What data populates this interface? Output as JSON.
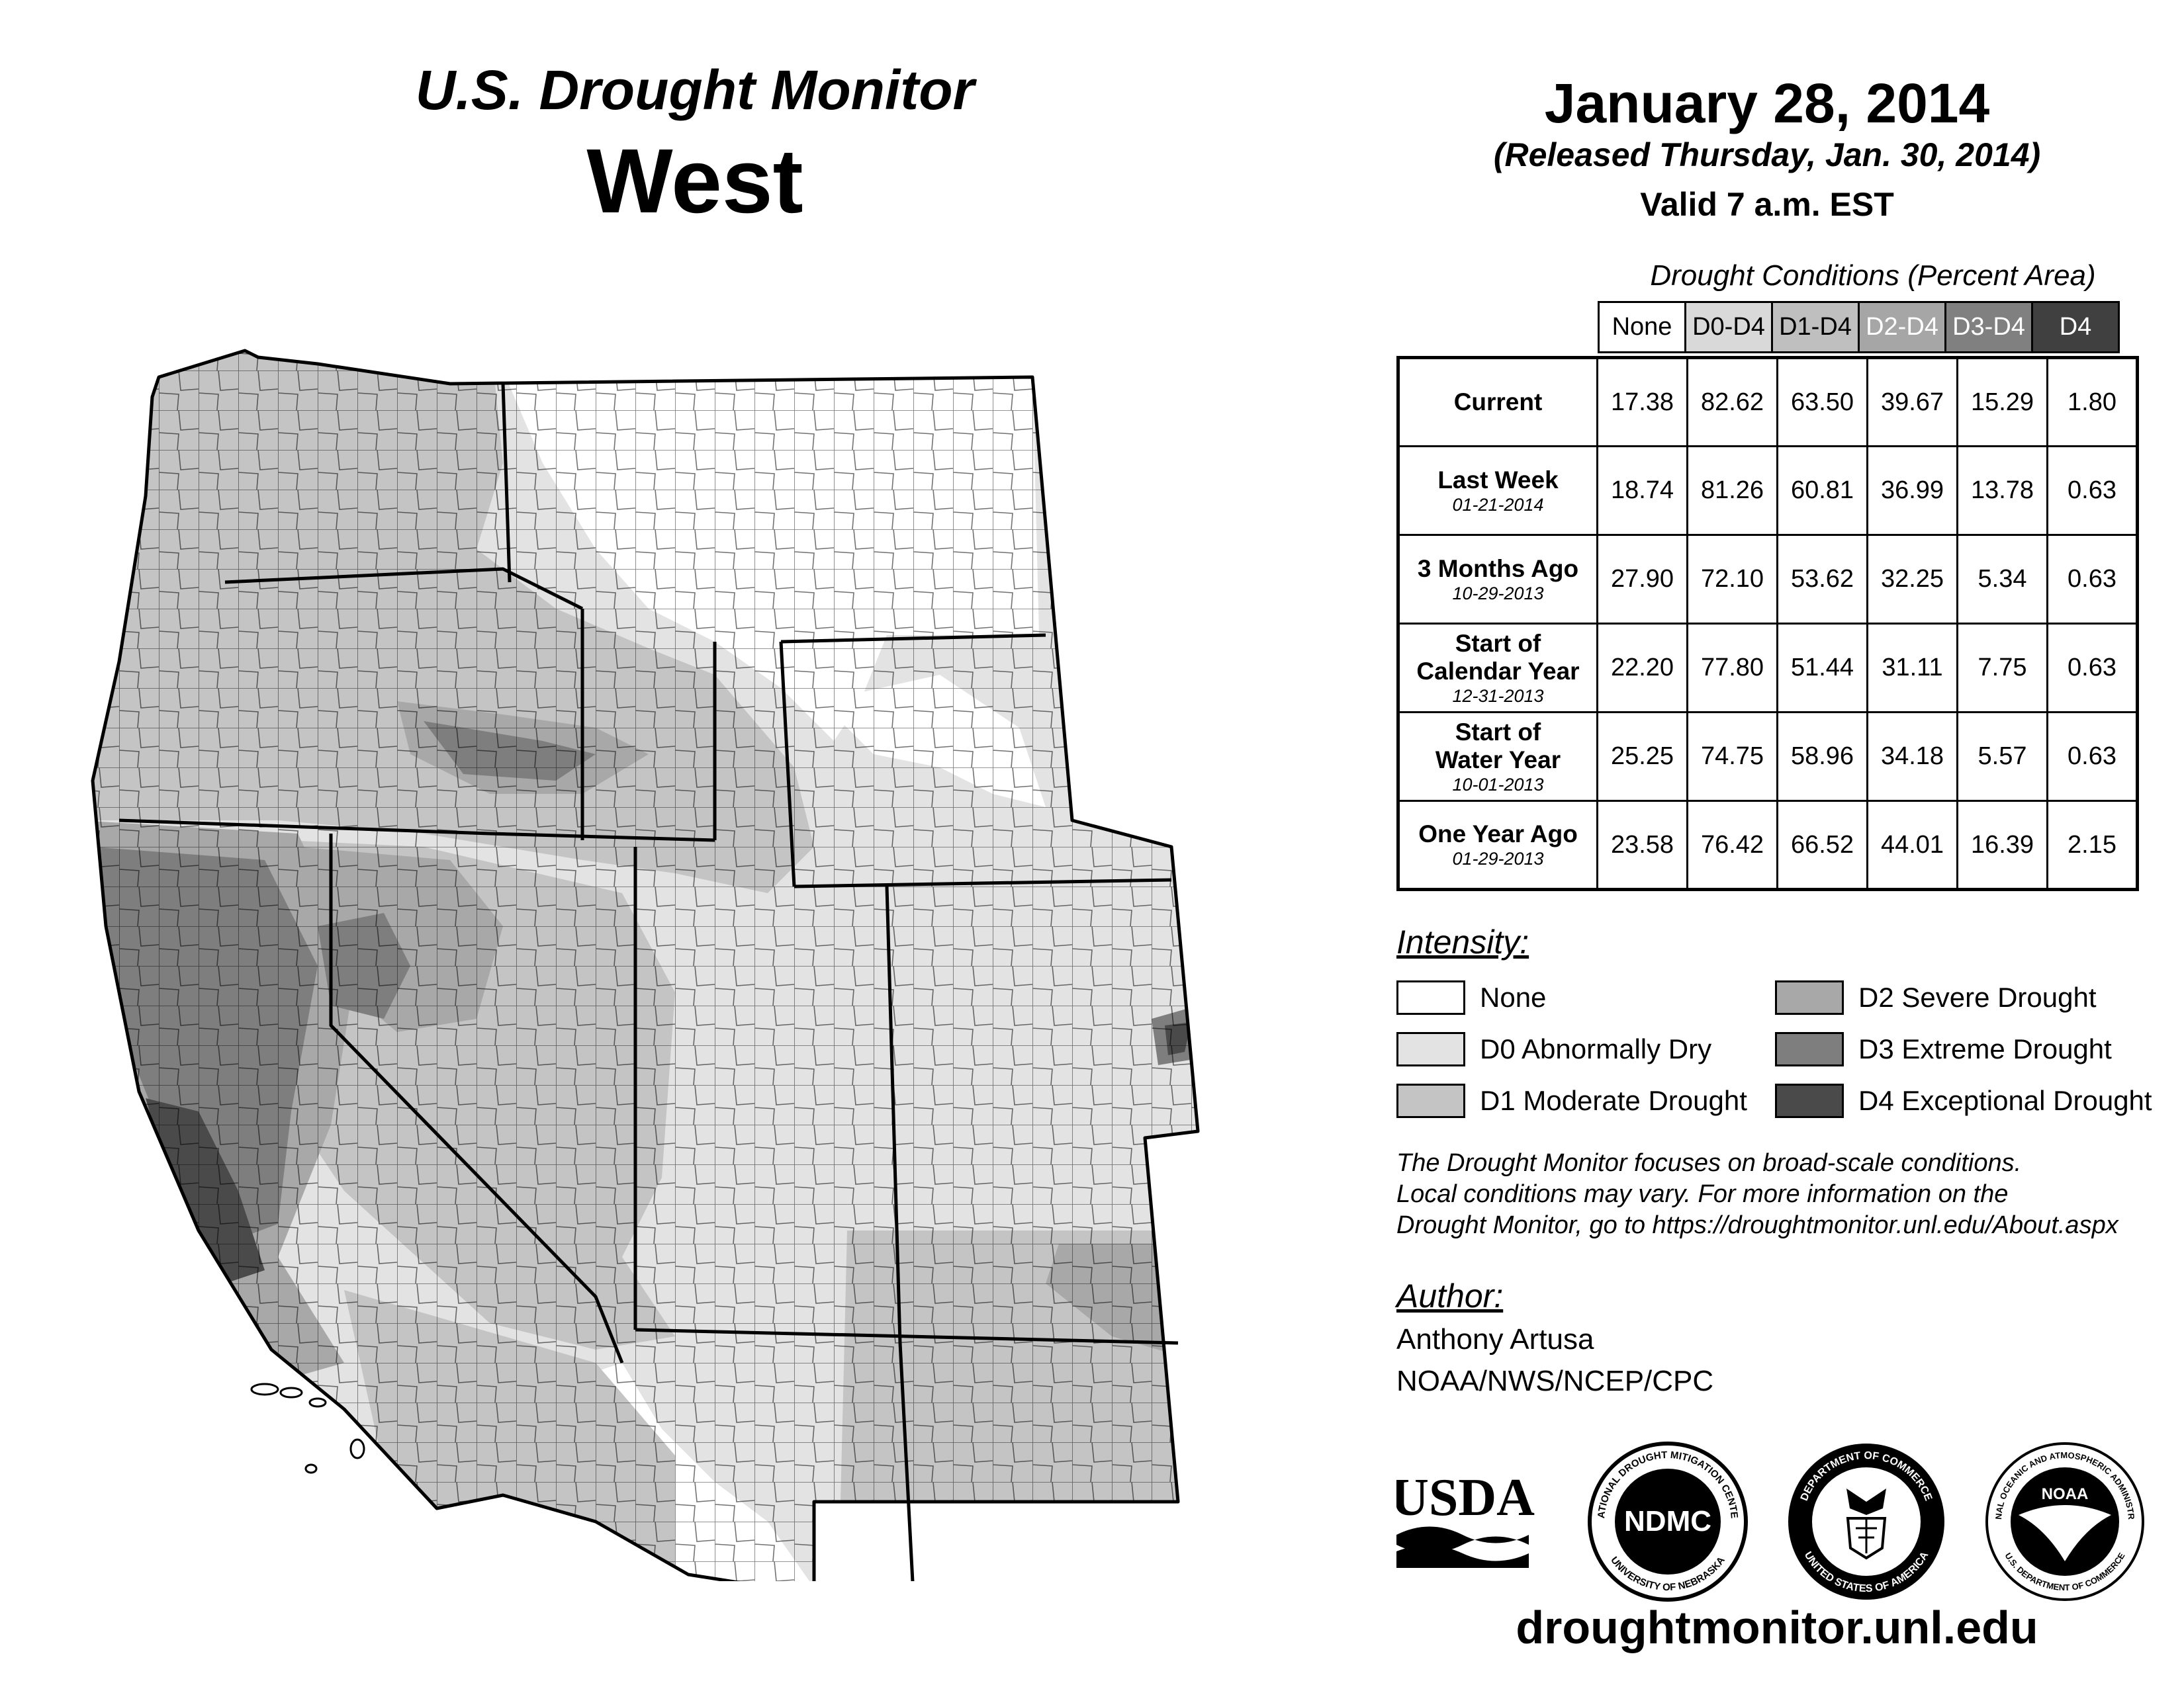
{
  "header": {
    "title": "U.S. Drought Monitor",
    "region": "West",
    "date": "January 28, 2014",
    "released": "(Released Thursday, Jan. 30, 2014)",
    "valid": "Valid 7 a.m. EST"
  },
  "table": {
    "caption": "Drought Conditions (Percent Area)",
    "columns": [
      "None",
      "D0-D4",
      "D1-D4",
      "D2-D4",
      "D3-D4",
      "D4"
    ],
    "column_colors": [
      "#ffffff",
      "#d9d9d9",
      "#bfbfbf",
      "#a6a6a6",
      "#808080",
      "#404040"
    ],
    "column_text_colors": [
      "#000000",
      "#000000",
      "#000000",
      "#ffffff",
      "#ffffff",
      "#ffffff"
    ],
    "rows": [
      {
        "label": "Current",
        "date": "",
        "values": [
          "17.38",
          "82.62",
          "63.50",
          "39.67",
          "15.29",
          "1.80"
        ]
      },
      {
        "label": "Last Week",
        "date": "01-21-2014",
        "values": [
          "18.74",
          "81.26",
          "60.81",
          "36.99",
          "13.78",
          "0.63"
        ]
      },
      {
        "label": "3 Months Ago",
        "date": "10-29-2013",
        "values": [
          "27.90",
          "72.10",
          "53.62",
          "32.25",
          "5.34",
          "0.63"
        ]
      },
      {
        "label_lines": [
          "Start of",
          "Calendar Year"
        ],
        "date": "12-31-2013",
        "values": [
          "22.20",
          "77.80",
          "51.44",
          "31.11",
          "7.75",
          "0.63"
        ]
      },
      {
        "label_lines": [
          "Start of",
          "Water Year"
        ],
        "date": "10-01-2013",
        "values": [
          "25.25",
          "74.75",
          "58.96",
          "34.18",
          "5.57",
          "0.63"
        ]
      },
      {
        "label": "One Year Ago",
        "date": "01-29-2013",
        "values": [
          "23.58",
          "76.42",
          "66.52",
          "44.01",
          "16.39",
          "2.15"
        ]
      }
    ]
  },
  "legend": {
    "title": "Intensity:",
    "items": [
      {
        "label": "None",
        "color": "#ffffff"
      },
      {
        "label": "D0 Abnormally Dry",
        "color": "#e3e3e3"
      },
      {
        "label": "D1 Moderate Drought",
        "color": "#c4c4c4"
      },
      {
        "label": "D2 Severe Drought",
        "color": "#a8a8a8"
      },
      {
        "label": "D3 Extreme Drought",
        "color": "#7e7e7e"
      },
      {
        "label": "D4 Exceptional Drought",
        "color": "#4a4a4a"
      }
    ]
  },
  "note": "The Drought Monitor focuses on broad-scale conditions. Local conditions may vary. For more information on the Drought Monitor, go to https://droughtmonitor.unl.edu/About.aspx",
  "note_lines": [
    "The Drought Monitor focuses on broad-scale conditions.",
    "Local conditions may vary. For more information on the",
    "Drought Monitor, go to https://droughtmonitor.unl.edu/About.aspx"
  ],
  "author": {
    "title": "Author:",
    "name": "Anthony Artusa",
    "org": "NOAA/NWS/NCEP/CPC"
  },
  "logos": {
    "usda": "USDA",
    "ndmc": "NDMC",
    "ndmc_ring_top": "NATIONAL DROUGHT MITIGATION CENTER",
    "ndmc_ring_bottom": "UNIVERSITY OF NEBRASKA",
    "doc_ring_top": "DEPARTMENT OF COMMERCE",
    "doc_ring_bottom": "UNITED STATES OF AMERICA",
    "noaa": "NOAA",
    "noaa_ring": "NATIONAL OCEANIC AND ATMOSPHERIC ADMINISTRATION",
    "noaa_ring_bottom": "U.S. DEPARTMENT OF COMMERCE"
  },
  "url": "droughtmonitor.unl.edu"
}
